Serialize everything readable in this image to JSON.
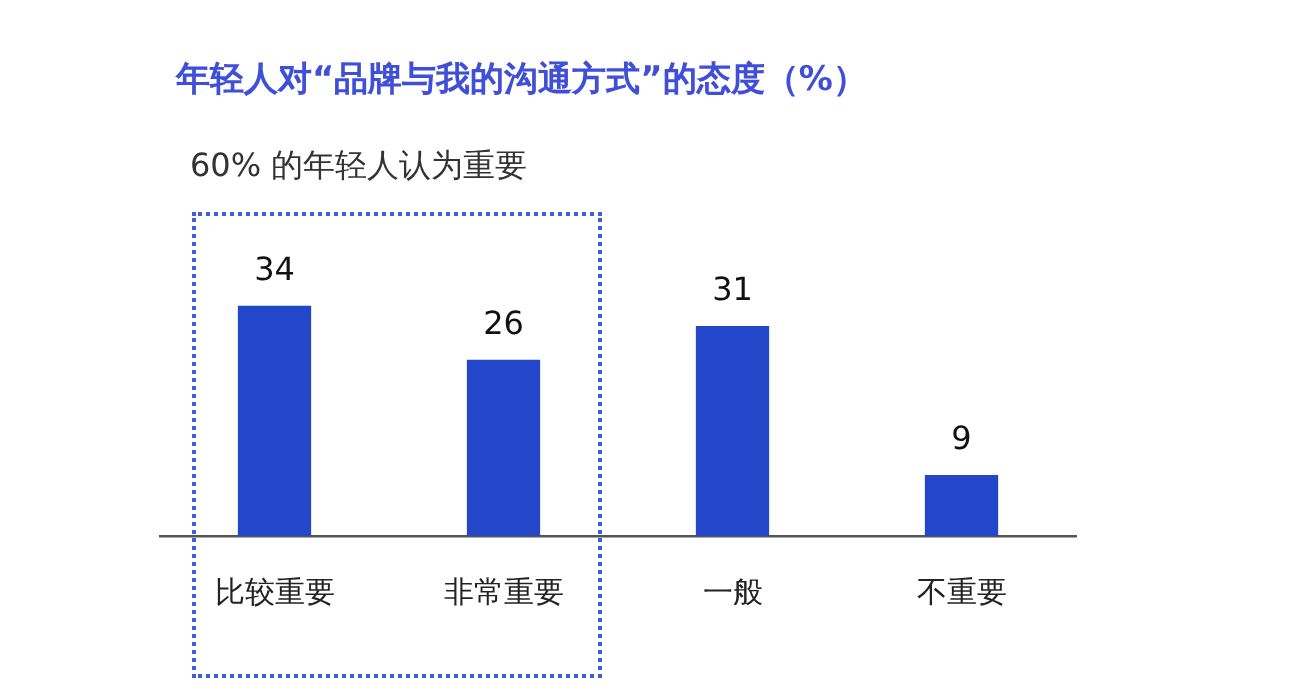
{
  "chart_data": {
    "type": "bar",
    "title": "年轻人对“品牌与我的沟通方式”的态度（%）",
    "subtitle": "60% 的年轻人认为重要",
    "categories": [
      "比较重要",
      "非常重要",
      "一般",
      "不重要"
    ],
    "values": [
      34,
      26,
      31,
      9
    ],
    "color": "#2446c9",
    "data_labels": true,
    "grid": false,
    "legend": false,
    "tick_labels": "x"
  }
}
